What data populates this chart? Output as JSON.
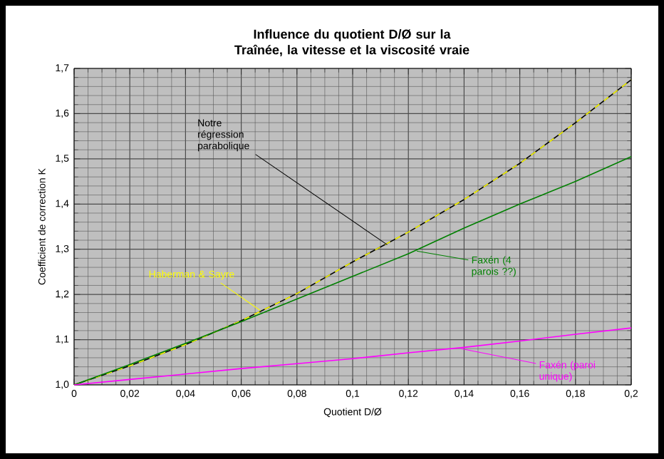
{
  "chart_data": {
    "type": "line",
    "title": "Influence du quotient D/Ø sur la Traînée, la vitesse et la viscosité vraie",
    "xlabel": "Quotient D/Ø",
    "ylabel": "Coefficient de correction K",
    "x": [
      0,
      0.02,
      0.04,
      0.06,
      0.08,
      0.1,
      0.12,
      0.14,
      0.16,
      0.18,
      0.2
    ],
    "series": [
      {
        "color": "#000000",
        "values": [
          1.0,
          1.042,
          1.089,
          1.142,
          1.202,
          1.272,
          1.338,
          1.41,
          1.49,
          1.58,
          1.675
        ]
      },
      {
        "color": "#ffff00",
        "line_style": "dashed",
        "values": [
          1.0,
          1.042,
          1.089,
          1.142,
          1.202,
          1.272,
          1.338,
          1.41,
          1.49,
          1.58,
          1.675
        ]
      },
      {
        "color": "#008000",
        "values": [
          1.0,
          1.045,
          1.092,
          1.14,
          1.19,
          1.24,
          1.29,
          1.347,
          1.4,
          1.45,
          1.505
        ]
      },
      {
        "color": "#ff00ff",
        "values": [
          1.0,
          1.012,
          1.024,
          1.036,
          1.047,
          1.058,
          1.071,
          1.083,
          1.097,
          1.112,
          1.126
        ]
      }
    ],
    "xlim": [
      0,
      0.2
    ],
    "ylim": [
      1.0,
      1.7
    ],
    "xticks": [
      0,
      {
        "value": 0.02,
        "label": "0,02"
      },
      {
        "value": 0.04,
        "label": "0,04"
      },
      {
        "value": 0.06,
        "label": "0,06"
      },
      {
        "value": 0.08,
        "label": "0,08"
      },
      {
        "value": 0.1,
        "label": "0,1"
      },
      {
        "value": 0.12,
        "label": "0,12"
      },
      {
        "value": 0.14,
        "label": "0,14"
      },
      {
        "value": 0.16,
        "label": "0,16"
      },
      {
        "value": 0.18,
        "label": "0,18"
      },
      {
        "value": 0.2,
        "label": "0,2"
      }
    ],
    "yticks": [
      {
        "value": 1.0,
        "label": "1,0"
      },
      {
        "value": 1.1,
        "label": "1,1"
      },
      {
        "value": 1.2,
        "label": "1,2"
      },
      {
        "value": 1.3,
        "label": "1,3"
      },
      {
        "value": 1.4,
        "label": "1,4"
      },
      {
        "value": 1.5,
        "label": "1,5"
      },
      {
        "value": 1.6,
        "label": "1,6"
      },
      {
        "value": 1.7,
        "label": "1,7"
      }
    ],
    "grid": true,
    "annotations": [
      {
        "text": "Notre régression parabolique",
        "x": 0.1124,
        "y": 1.31
      },
      {
        "text": "Haberman & Sayre",
        "x": 0.067,
        "y": 1.164
      },
      {
        "text": "Faxén (4 parois ??)",
        "x": 0.123,
        "y": 1.296
      },
      {
        "text": "Faxén (paroi unique)",
        "x": 0.139,
        "y": 1.08
      }
    ]
  }
}
